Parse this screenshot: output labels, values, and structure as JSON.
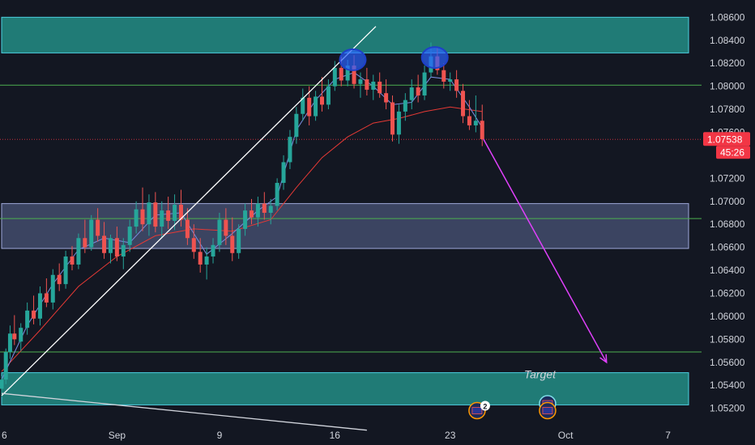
{
  "chart_data": {
    "type": "candlestick",
    "title": "",
    "ylim": [
      1.0505,
      1.0875
    ],
    "price_ticks": [
      "1.08600",
      "1.08400",
      "1.08200",
      "1.08000",
      "1.07800",
      "1.07600",
      "1.07200",
      "1.07000",
      "1.06800",
      "1.06600",
      "1.06400",
      "1.06200",
      "1.06000",
      "1.05800",
      "1.05600",
      "1.05400",
      "1.05200"
    ],
    "time_labels": [
      {
        "label": "6",
        "day": 0
      },
      {
        "label": "Sep",
        "day": 9
      },
      {
        "label": "9",
        "day": 17
      },
      {
        "label": "16",
        "day": 26
      },
      {
        "label": "23",
        "day": 35
      },
      {
        "label": "Oct",
        "day": 44
      },
      {
        "label": "7",
        "day": 52
      }
    ],
    "last_price": "1.07538",
    "countdown": "45:26",
    "zones": [
      {
        "name": "supply-zone",
        "price_top": 1.086,
        "price_bottom": 1.0829,
        "day_start": 0,
        "day_end": 54,
        "color": "#26a69a"
      },
      {
        "name": "mid-zone",
        "price_top": 1.0698,
        "price_bottom": 1.0659,
        "day_start": 0,
        "day_end": 54,
        "color": "#5d6a96"
      },
      {
        "name": "target-zone",
        "price_top": 1.0551,
        "price_bottom": 1.0523,
        "day_start": 0,
        "day_end": 54,
        "color": "#26a69a"
      }
    ],
    "levels": [
      {
        "name": "resistance-level",
        "price": 1.0801,
        "color": "#4caf50"
      },
      {
        "name": "mid-level",
        "price": 1.0685,
        "color": "#4caf50"
      },
      {
        "name": "target-level",
        "price": 1.0569,
        "color": "#4caf50"
      },
      {
        "name": "last-price-level",
        "price": 1.07538,
        "color": "#f23645"
      }
    ],
    "trend_lines": [
      {
        "name": "rising-trendline",
        "from": {
          "day": 0,
          "price": 1.0531
        },
        "to": {
          "day": 29.2,
          "price": 1.0852
        },
        "color": "#ffffff"
      },
      {
        "name": "falling-trendline",
        "from": {
          "day": 0,
          "price": 1.0533
        },
        "to": {
          "day": 28.5,
          "price": 1.0501
        },
        "color": "#d1d4dc"
      }
    ],
    "forecast_arrow": {
      "from": {
        "day": 37.6,
        "price": 1.0754
      },
      "to": {
        "day": 47.2,
        "price": 1.056
      },
      "color": "#e040fb"
    },
    "markers": [
      {
        "name": "first-top-marker",
        "day": 27.4,
        "price": 1.0823
      },
      {
        "name": "second-top-marker",
        "day": 33.8,
        "price": 1.0825
      }
    ],
    "annotation": {
      "text": "Target",
      "day": 42,
      "price": 1.0546
    },
    "candles": [
      [
        0,
        1.0537,
        1.0548,
        1.053,
        1.0545
      ],
      [
        0.33,
        1.0545,
        1.0572,
        1.0541,
        1.0569
      ],
      [
        0.66,
        1.0569,
        1.0592,
        1.0563,
        1.0585
      ],
      [
        1,
        1.0585,
        1.0601,
        1.0575,
        1.058
      ],
      [
        1.5,
        1.0578,
        1.0594,
        1.057,
        1.059
      ],
      [
        2,
        1.059,
        1.0612,
        1.0584,
        1.0605
      ],
      [
        2.5,
        1.0605,
        1.0618,
        1.0593,
        1.0598
      ],
      [
        3,
        1.0598,
        1.0626,
        1.0592,
        1.062
      ],
      [
        3.5,
        1.062,
        1.0633,
        1.0608,
        1.0612
      ],
      [
        4,
        1.0612,
        1.0641,
        1.0606,
        1.0636
      ],
      [
        4.5,
        1.0636,
        1.0646,
        1.0622,
        1.0628
      ],
      [
        5,
        1.0628,
        1.0657,
        1.0624,
        1.0652
      ],
      [
        5.5,
        1.0652,
        1.0661,
        1.064,
        1.0645
      ],
      [
        6,
        1.0645,
        1.0672,
        1.0641,
        1.0668
      ],
      [
        6.5,
        1.0668,
        1.0684,
        1.0655,
        1.066
      ],
      [
        7,
        1.066,
        1.0688,
        1.0657,
        1.0684
      ],
      [
        7.5,
        1.0684,
        1.0694,
        1.0665,
        1.067
      ],
      [
        8,
        1.067,
        1.0682,
        1.065,
        1.0655
      ],
      [
        8.5,
        1.0655,
        1.0671,
        1.0646,
        1.0668
      ],
      [
        9,
        1.0668,
        1.0678,
        1.0648,
        1.0652
      ],
      [
        9.5,
        1.0652,
        1.0668,
        1.0641,
        1.0662
      ],
      [
        10,
        1.0662,
        1.0684,
        1.0656,
        1.0678
      ],
      [
        10.5,
        1.0678,
        1.07,
        1.0672,
        1.0693
      ],
      [
        11,
        1.0693,
        1.0712,
        1.0674,
        1.068
      ],
      [
        11.5,
        1.068,
        1.0706,
        1.067,
        1.0699
      ],
      [
        12,
        1.0699,
        1.0708,
        1.0673,
        1.0678
      ],
      [
        12.5,
        1.0678,
        1.07,
        1.0668,
        1.0692
      ],
      [
        13,
        1.0692,
        1.0704,
        1.0676,
        1.0683
      ],
      [
        13.5,
        1.0683,
        1.0706,
        1.0675,
        1.0697
      ],
      [
        14,
        1.0697,
        1.071,
        1.0678,
        1.0684
      ],
      [
        14.5,
        1.0684,
        1.0694,
        1.0662,
        1.0668
      ],
      [
        15,
        1.0668,
        1.068,
        1.065,
        1.0656
      ],
      [
        15.5,
        1.0656,
        1.0668,
        1.0638,
        1.0645
      ],
      [
        16,
        1.0645,
        1.066,
        1.0632,
        1.0652
      ],
      [
        16.5,
        1.0652,
        1.0668,
        1.0646,
        1.0662
      ],
      [
        17,
        1.0662,
        1.069,
        1.0656,
        1.0684
      ],
      [
        17.5,
        1.0684,
        1.0694,
        1.0662,
        1.067
      ],
      [
        18,
        1.067,
        1.0686,
        1.0648,
        1.0655
      ],
      [
        18.5,
        1.0655,
        1.068,
        1.065,
        1.0676
      ],
      [
        19,
        1.0676,
        1.0698,
        1.067,
        1.0692
      ],
      [
        19.5,
        1.0692,
        1.0702,
        1.068,
        1.0686
      ],
      [
        20,
        1.0686,
        1.0704,
        1.0678,
        1.0698
      ],
      [
        20.5,
        1.0698,
        1.0708,
        1.0684,
        1.069
      ],
      [
        21,
        1.069,
        1.0702,
        1.068,
        1.0696
      ],
      [
        21.5,
        1.0696,
        1.072,
        1.0692,
        1.0716
      ],
      [
        22,
        1.0716,
        1.074,
        1.071,
        1.0734
      ],
      [
        22.5,
        1.0734,
        1.0762,
        1.0728,
        1.0756
      ],
      [
        23,
        1.0756,
        1.0782,
        1.075,
        1.0776
      ],
      [
        23.5,
        1.0776,
        1.0798,
        1.077,
        1.079
      ],
      [
        24,
        1.079,
        1.08,
        1.0766,
        1.0774
      ],
      [
        24.5,
        1.0774,
        1.0796,
        1.077,
        1.0791
      ],
      [
        25,
        1.0791,
        1.0808,
        1.0778,
        1.0784
      ],
      [
        25.5,
        1.0784,
        1.0806,
        1.078,
        1.08
      ],
      [
        26,
        1.08,
        1.0822,
        1.0796,
        1.0816
      ],
      [
        26.5,
        1.0816,
        1.0826,
        1.08,
        1.0805
      ],
      [
        27,
        1.0805,
        1.0823,
        1.08,
        1.0818
      ],
      [
        27.5,
        1.0818,
        1.0827,
        1.0798,
        1.0802
      ],
      [
        28,
        1.0802,
        1.0812,
        1.079,
        1.0806
      ],
      [
        28.5,
        1.0806,
        1.0816,
        1.0792,
        1.0797
      ],
      [
        29,
        1.0797,
        1.081,
        1.0788,
        1.0804
      ],
      [
        29.5,
        1.0804,
        1.0812,
        1.079,
        1.0794
      ],
      [
        30,
        1.0794,
        1.0806,
        1.078,
        1.0786
      ],
      [
        30.5,
        1.0786,
        1.0792,
        1.0752,
        1.0758
      ],
      [
        31,
        1.0758,
        1.0784,
        1.075,
        1.0778
      ],
      [
        31.5,
        1.0778,
        1.0794,
        1.077,
        1.0788
      ],
      [
        32,
        1.0788,
        1.0806,
        1.078,
        1.0799
      ],
      [
        32.5,
        1.0799,
        1.081,
        1.0786,
        1.0792
      ],
      [
        33,
        1.0792,
        1.0818,
        1.0788,
        1.0812
      ],
      [
        33.5,
        1.0812,
        1.0838,
        1.0808,
        1.0826
      ],
      [
        34,
        1.0826,
        1.0834,
        1.081,
        1.0814
      ],
      [
        34.5,
        1.0814,
        1.082,
        1.0798,
        1.0804
      ],
      [
        35,
        1.0804,
        1.0812,
        1.0796,
        1.0806
      ],
      [
        35.5,
        1.0806,
        1.0814,
        1.079,
        1.0796
      ],
      [
        36,
        1.0796,
        1.0802,
        1.0768,
        1.0774
      ],
      [
        36.5,
        1.0774,
        1.0788,
        1.0762,
        1.0766
      ],
      [
        37,
        1.0766,
        1.0792,
        1.076,
        1.077
      ],
      [
        37.5,
        1.077,
        1.0784,
        1.0748,
        1.0754
      ]
    ],
    "ma_fast": [
      [
        0,
        1.0545
      ],
      [
        2,
        1.0592
      ],
      [
        4,
        1.0628
      ],
      [
        6,
        1.0658
      ],
      [
        8,
        1.0668
      ],
      [
        10,
        1.0664
      ],
      [
        12,
        1.0688
      ],
      [
        14,
        1.069
      ],
      [
        16,
        1.0654
      ],
      [
        18,
        1.0672
      ],
      [
        20,
        1.0692
      ],
      [
        21.5,
        1.0704
      ],
      [
        23,
        1.0762
      ],
      [
        24.5,
        1.0788
      ],
      [
        26,
        1.0806
      ],
      [
        27.5,
        1.0812
      ],
      [
        29,
        1.08
      ],
      [
        30.5,
        1.0784
      ],
      [
        32,
        1.0786
      ],
      [
        33.5,
        1.0808
      ],
      [
        35,
        1.0806
      ],
      [
        36.5,
        1.0782
      ],
      [
        37.5,
        1.0764
      ]
    ],
    "ma_slow": [
      [
        0,
        1.0552
      ],
      [
        3,
        1.0588
      ],
      [
        6,
        1.0626
      ],
      [
        9,
        1.0652
      ],
      [
        12,
        1.067
      ],
      [
        15,
        1.0676
      ],
      [
        18,
        1.0674
      ],
      [
        21,
        1.0684
      ],
      [
        23,
        1.0712
      ],
      [
        25,
        1.0738
      ],
      [
        27,
        1.0756
      ],
      [
        29,
        1.0768
      ],
      [
        31,
        1.0772
      ],
      [
        33,
        1.0778
      ],
      [
        35,
        1.0782
      ],
      [
        37.5,
        1.0778
      ]
    ],
    "event_icons": [
      {
        "name": "event-icon-1",
        "day": 37.1,
        "price": 1.0518,
        "badge": "2"
      },
      {
        "name": "event-icon-2",
        "day": 42.6,
        "price": 1.0524,
        "badge": ""
      },
      {
        "name": "event-icon-3",
        "day": 42.6,
        "price": 1.0518,
        "badge": ""
      }
    ]
  },
  "colors": {
    "background": "#131722",
    "bull": "#26a69a",
    "bear": "#ef5350",
    "ma_fast": "#7b8ce0",
    "ma_slow": "#e53935",
    "axis_text": "#d1d4dc",
    "price_tag": "#f23645"
  }
}
